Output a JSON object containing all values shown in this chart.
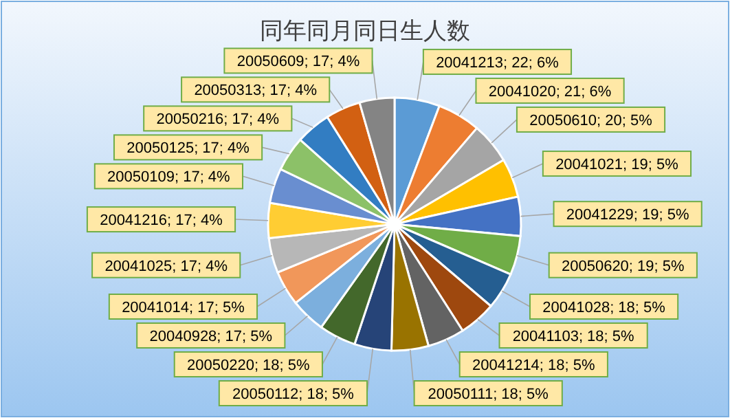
{
  "chart_data": {
    "type": "pie",
    "title": "同年同月同日生人数",
    "categories": [
      "20041213",
      "20041020",
      "20050610",
      "20041021",
      "20041229",
      "20050620",
      "20041028",
      "20041103",
      "20041214",
      "20050111",
      "20050112",
      "20050220",
      "20040928",
      "20041014",
      "20041025",
      "20041216",
      "20050109",
      "20050125",
      "20050216",
      "20050313",
      "20050609"
    ],
    "values": [
      22,
      21,
      20,
      19,
      19,
      19,
      18,
      18,
      18,
      18,
      18,
      18,
      17,
      17,
      17,
      17,
      17,
      17,
      17,
      17,
      17
    ],
    "value_labels": [
      "22; 6%",
      "21; 6%",
      "20; 5%",
      "19; 5%",
      "19; 5%",
      "19; 5%",
      "18; 5%",
      "18; 5%",
      "18; 5%",
      "18; 5%",
      "18; 5%",
      "18; 5%",
      "17; 5%",
      "17; 5%",
      "17; 4%",
      "17; 4%",
      "17; 4%",
      "17; 4%",
      "17; 4%",
      "17; 4%",
      "17; 4%"
    ],
    "colors": [
      "#5b9bd5",
      "#ed7d31",
      "#a5a5a5",
      "#ffc000",
      "#4472c4",
      "#70ad47",
      "#255e91",
      "#9e480e",
      "#636363",
      "#997300",
      "#264478",
      "#43682b",
      "#7cafdd",
      "#f1975a",
      "#b7b7b7",
      "#ffcd33",
      "#698ed0",
      "#8cc168",
      "#327dc2",
      "#d26012",
      "#848484"
    ]
  }
}
